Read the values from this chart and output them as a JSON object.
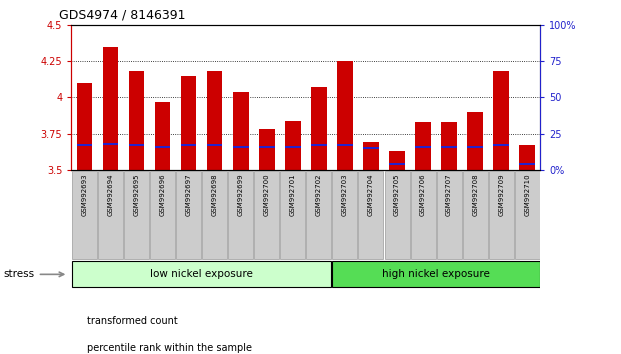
{
  "title": "GDS4974 / 8146391",
  "samples": [
    "GSM992693",
    "GSM992694",
    "GSM992695",
    "GSM992696",
    "GSM992697",
    "GSM992698",
    "GSM992699",
    "GSM992700",
    "GSM992701",
    "GSM992702",
    "GSM992703",
    "GSM992704",
    "GSM992705",
    "GSM992706",
    "GSM992707",
    "GSM992708",
    "GSM992709",
    "GSM992710"
  ],
  "transformed_counts": [
    4.1,
    4.35,
    4.18,
    3.97,
    4.15,
    4.18,
    4.04,
    3.78,
    3.84,
    4.07,
    4.25,
    3.69,
    3.63,
    3.83,
    3.83,
    3.9,
    4.18,
    3.67
  ],
  "percentile_ranks": [
    17,
    18,
    17,
    16,
    17,
    17,
    16,
    16,
    16,
    17,
    17,
    15,
    4,
    16,
    16,
    16,
    17,
    4
  ],
  "ymin": 3.5,
  "ymax": 4.5,
  "yticks": [
    3.5,
    3.75,
    4.0,
    4.25,
    4.5
  ],
  "ytick_labels": [
    "3.5",
    "3.75",
    "4",
    "4.25",
    "4.5"
  ],
  "right_yticks": [
    0,
    25,
    50,
    75,
    100
  ],
  "right_yticklabels": [
    "0%",
    "25",
    "50",
    "75",
    "100%"
  ],
  "bar_color": "#cc0000",
  "blue_color": "#2222cc",
  "left_axis_color": "#cc0000",
  "right_axis_color": "#2222cc",
  "n_low": 10,
  "n_high": 8,
  "group_low_label": "low nickel exposure",
  "group_high_label": "high nickel exposure",
  "group_low_color": "#ccffcc",
  "group_high_color": "#55dd55",
  "stress_label": "stress",
  "legend_items": [
    "transformed count",
    "percentile rank within the sample"
  ],
  "legend_colors": [
    "#cc0000",
    "#2222cc"
  ],
  "grid_lines": [
    3.75,
    4.0,
    4.25
  ],
  "bar_width": 0.6,
  "sample_box_color": "#cccccc",
  "sample_box_edge": "#999999"
}
